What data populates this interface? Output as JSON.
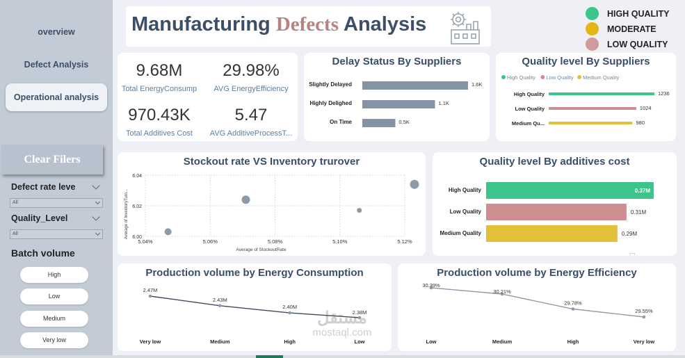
{
  "sidebar": {
    "nav": [
      "overview",
      "Defect Analysis",
      "Operational analysis"
    ],
    "clear_label": "Clear Filers",
    "slicers": [
      {
        "title": "Defect rate leve",
        "value": "All"
      },
      {
        "title": "Quality_Level",
        "value": "All"
      }
    ],
    "batch_title": "Batch volume",
    "batch_options": [
      "High",
      "Low",
      "Medium",
      "Very low"
    ]
  },
  "header": {
    "title_part1": "Manufacturing",
    "title_part2": "Defects",
    "title_part3": "Analysis"
  },
  "legend": {
    "items": [
      {
        "label": "HIGH QUALITY",
        "color": "#3cc58a"
      },
      {
        "label": "MODERATE",
        "color": "#e2b714"
      },
      {
        "label": "LOW QUALITY",
        "color": "#d39a9c"
      }
    ]
  },
  "kpis": [
    {
      "value": "9.68M",
      "label": "Total EnergyConsump"
    },
    {
      "value": "29.98%",
      "label": "AVG EnergyEfficiency"
    },
    {
      "value": "970.43K",
      "label": "Total Additives Cost"
    },
    {
      "value": "5.47",
      "label": "AVG AdditiveProcessT..."
    }
  ],
  "watermark": {
    "arabic": "مستقل",
    "latin": "mostaql.com"
  },
  "chart_data": [
    {
      "type": "bar",
      "orientation": "horizontal",
      "title": "Delay Status By Suppliers",
      "categories": [
        "Slightly Delayed",
        "Highly Delighed",
        "On Time"
      ],
      "values": [
        1600,
        1100,
        500
      ],
      "value_labels": [
        "1.6K",
        "1.1K",
        "0.5K"
      ],
      "color": "#8494a5"
    },
    {
      "type": "bar",
      "orientation": "horizontal",
      "title": "Quality level By Suppliers",
      "legend": [
        "High Quality",
        "Low Quality",
        "Medium Quality"
      ],
      "legend_placement": "top-left",
      "categories": [
        "High Quality",
        "Low Quality",
        "Medium Qu..."
      ],
      "values": [
        1236,
        1024,
        980
      ],
      "value_labels": [
        "1236",
        "1024",
        "980"
      ],
      "colors": [
        "#3cc58a",
        "#cf8f92",
        "#e2c13a"
      ]
    },
    {
      "type": "scatter",
      "title": "Stockout rate VS Inventory trurover",
      "xlabel": "Average of StockoutRate",
      "ylabel": "Average of InventoryTurn...",
      "xlim": [
        5.04,
        5.12
      ],
      "ylim": [
        6.0,
        6.04
      ],
      "xticks": [
        "5.04%",
        "5.06%",
        "5.08%",
        "5.10%",
        "5.12%"
      ],
      "yticks": [
        "6.04",
        "6.02",
        "6.00"
      ],
      "points": [
        {
          "x": 5.047,
          "y": 6.003,
          "size": 5
        },
        {
          "x": 5.071,
          "y": 6.024,
          "size": 6
        },
        {
          "x": 5.106,
          "y": 6.017,
          "size": 3.5
        },
        {
          "x": 5.123,
          "y": 6.034,
          "size": 6.5
        }
      ],
      "color": "#8e9aa6",
      "grid": true
    },
    {
      "type": "bar",
      "orientation": "horizontal",
      "title": "Quality level By additives cost",
      "categories": [
        "High Quality",
        "Low Quality",
        "Medium Quality"
      ],
      "values": [
        370000,
        310000,
        290000
      ],
      "value_labels": [
        "0.37M",
        "0.31M",
        "0.29M"
      ],
      "colors": [
        "#3cc58a",
        "#cf8f92",
        "#e2c13a"
      ]
    },
    {
      "type": "line",
      "title": "Production volume by Energy Consumption",
      "categories": [
        "Very low",
        "Medium",
        "High",
        "Low"
      ],
      "values": [
        2.47,
        2.43,
        2.4,
        2.38
      ],
      "value_labels": [
        "2.47M",
        "2.43M",
        "2.40M",
        "2.38M"
      ],
      "color": "#3d4a5c"
    },
    {
      "type": "line",
      "title": "Production volume by Energy Efficiency",
      "categories": [
        "Low",
        "Medium",
        "High",
        "Very low"
      ],
      "values": [
        30.39,
        30.21,
        29.78,
        29.55
      ],
      "value_labels": [
        "30.39%",
        "30.21%",
        "29.78%",
        "29.55%"
      ],
      "color": "#8e9aa6"
    }
  ]
}
